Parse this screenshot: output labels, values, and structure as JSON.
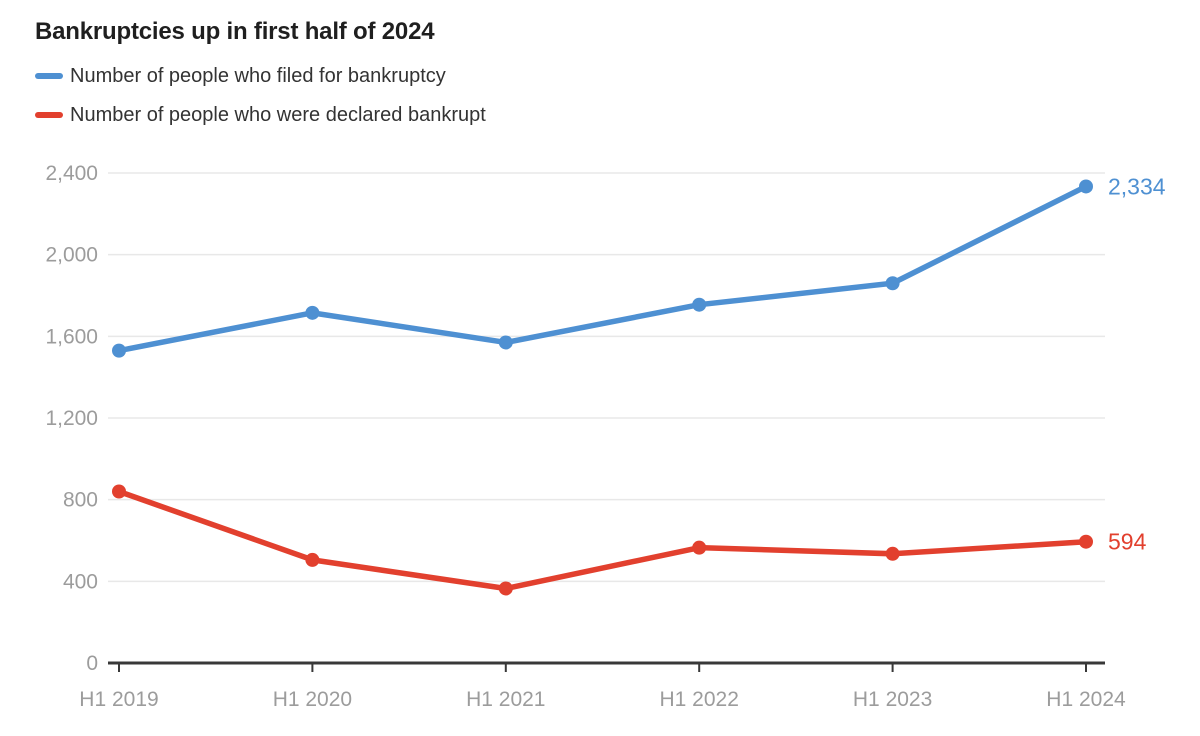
{
  "title": "Bankruptcies up in first half of 2024",
  "legend": [
    {
      "label": "Number of people who filed for bankruptcy",
      "color": "#4e90d2"
    },
    {
      "label": "Number of people who were declared bankrupt",
      "color": "#e2402e"
    }
  ],
  "colors": {
    "blue_series": "#4e90d2",
    "red_series": "#e2402e",
    "tick_label": "#9c9c9c",
    "gridline": "#e8e8e8",
    "axis": "#383838",
    "title_text": "#1f1f1f",
    "legend_text": "#333333"
  },
  "chart_data": {
    "type": "line",
    "title": "Bankruptcies up in first half of 2024",
    "categories": [
      "H1 2019",
      "H1 2020",
      "H1 2021",
      "H1 2022",
      "H1 2023",
      "H1 2024"
    ],
    "series": [
      {
        "name": "Number of people who filed for bankruptcy",
        "color": "#4e90d2",
        "values": [
          1530,
          1715,
          1570,
          1755,
          1860,
          2334
        ],
        "end_label": "2,334"
      },
      {
        "name": "Number of people who were declared bankrupt",
        "color": "#e2402e",
        "values": [
          840,
          505,
          365,
          565,
          535,
          594
        ],
        "end_label": "594"
      }
    ],
    "y_ticks": [
      {
        "value": 2400,
        "label": "2,400"
      },
      {
        "value": 2000,
        "label": "2,000"
      },
      {
        "value": 1600,
        "label": "1,600"
      },
      {
        "value": 1200,
        "label": "1,200"
      },
      {
        "value": 800,
        "label": "800"
      },
      {
        "value": 400,
        "label": "400"
      },
      {
        "value": 0,
        "label": "0"
      }
    ],
    "ylim": [
      0,
      2400
    ],
    "grid": true,
    "legend_position": "top-left",
    "xlabel": "",
    "ylabel": ""
  }
}
